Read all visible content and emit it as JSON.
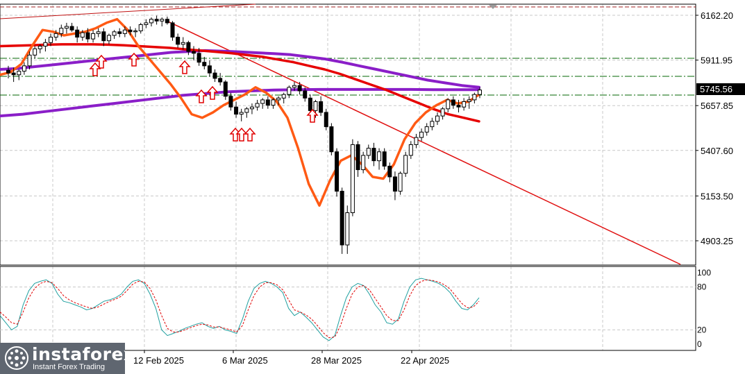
{
  "chart_data": {
    "type": "candlestick",
    "y_ticks": [
      "6162.20",
      "5911.95",
      "5657.85",
      "5407.60",
      "5153.50",
      "4903.25"
    ],
    "price_label": "5745.56",
    "x_ticks": [
      "12 Feb 2025",
      "6 Mar 2025",
      "28 Mar 2025",
      "22 Apr 2025"
    ],
    "oscillator_ticks": [
      "100",
      "80",
      "20",
      "0"
    ],
    "colors": {
      "bull_candle": "#ffffff",
      "bear_candle": "#000000",
      "fast_ma": "#ff5a14",
      "mid_ma": "#e60000",
      "slow_ma": "#8a1ec8",
      "trendline": "#e01010",
      "osc_main": "#20a0a0",
      "osc_signal": "#e00000",
      "grid": "#c8c8c8",
      "arrows": "#e00000"
    },
    "candles": [
      [
        5855,
        5880,
        5810,
        5840
      ],
      [
        5840,
        5870,
        5790,
        5830
      ],
      [
        5830,
        5860,
        5800,
        5850
      ],
      [
        5850,
        5900,
        5830,
        5880
      ],
      [
        5880,
        5960,
        5860,
        5940
      ],
      [
        5940,
        5990,
        5920,
        5975
      ],
      [
        5975,
        6000,
        5950,
        5990
      ],
      [
        5990,
        6030,
        5960,
        6010
      ],
      [
        6010,
        6060,
        5990,
        6040
      ],
      [
        6040,
        6080,
        6020,
        6060
      ],
      [
        6060,
        6110,
        6040,
        6090
      ],
      [
        6090,
        6120,
        6060,
        6100
      ],
      [
        6100,
        6120,
        6070,
        6080
      ],
      [
        6080,
        6100,
        6010,
        6040
      ],
      [
        6040,
        6080,
        6020,
        6065
      ],
      [
        6065,
        6090,
        6010,
        6030
      ],
      [
        6030,
        6080,
        6010,
        6060
      ],
      [
        6060,
        6090,
        6040,
        6070
      ],
      [
        6070,
        6090,
        5990,
        6020
      ],
      [
        6020,
        6060,
        6000,
        6050
      ],
      [
        6050,
        6080,
        6030,
        6070
      ],
      [
        6070,
        6090,
        6040,
        6060
      ],
      [
        6060,
        6100,
        6040,
        6080
      ],
      [
        6080,
        6100,
        6050,
        6070
      ],
      [
        6070,
        6090,
        6040,
        6075
      ],
      [
        6075,
        6120,
        6060,
        6110
      ],
      [
        6110,
        6140,
        6090,
        6120
      ],
      [
        6120,
        6150,
        6100,
        6140
      ],
      [
        6140,
        6160,
        6110,
        6130
      ],
      [
        6130,
        6150,
        6100,
        6140
      ],
      [
        6140,
        6155,
        6110,
        6120
      ],
      [
        6120,
        6130,
        6020,
        6040
      ],
      [
        6040,
        6060,
        5980,
        6000
      ],
      [
        6000,
        6040,
        5970,
        6010
      ],
      [
        6010,
        6020,
        5940,
        5960
      ],
      [
        5960,
        5990,
        5910,
        5950
      ],
      [
        5950,
        5980,
        5880,
        5900
      ],
      [
        5900,
        5930,
        5860,
        5880
      ],
      [
        5880,
        5910,
        5820,
        5840
      ],
      [
        5840,
        5860,
        5790,
        5810
      ],
      [
        5810,
        5840,
        5770,
        5790
      ],
      [
        5790,
        5800,
        5690,
        5710
      ],
      [
        5710,
        5730,
        5630,
        5650
      ],
      [
        5650,
        5680,
        5590,
        5610
      ],
      [
        5610,
        5640,
        5570,
        5620
      ],
      [
        5620,
        5650,
        5590,
        5640
      ],
      [
        5640,
        5670,
        5610,
        5650
      ],
      [
        5650,
        5690,
        5630,
        5670
      ],
      [
        5670,
        5700,
        5640,
        5690
      ],
      [
        5690,
        5710,
        5640,
        5660
      ],
      [
        5660,
        5700,
        5640,
        5690
      ],
      [
        5690,
        5710,
        5660,
        5700
      ],
      [
        5700,
        5730,
        5670,
        5720
      ],
      [
        5720,
        5770,
        5700,
        5760
      ],
      [
        5760,
        5790,
        5740,
        5770
      ],
      [
        5770,
        5790,
        5720,
        5740
      ],
      [
        5740,
        5760,
        5680,
        5700
      ],
      [
        5700,
        5720,
        5610,
        5630
      ],
      [
        5630,
        5690,
        5590,
        5680
      ],
      [
        5680,
        5710,
        5600,
        5620
      ],
      [
        5620,
        5640,
        5520,
        5540
      ],
      [
        5540,
        5560,
        5380,
        5400
      ],
      [
        5400,
        5420,
        5150,
        5180
      ],
      [
        5180,
        5200,
        4830,
        4880
      ],
      [
        4880,
        5100,
        4830,
        5060
      ],
      [
        5060,
        5470,
        5040,
        5440
      ],
      [
        5440,
        5460,
        5260,
        5300
      ],
      [
        5300,
        5400,
        5280,
        5380
      ],
      [
        5380,
        5440,
        5360,
        5420
      ],
      [
        5420,
        5450,
        5320,
        5350
      ],
      [
        5350,
        5420,
        5300,
        5400
      ],
      [
        5400,
        5420,
        5300,
        5320
      ],
      [
        5320,
        5340,
        5230,
        5260
      ],
      [
        5260,
        5290,
        5130,
        5180
      ],
      [
        5180,
        5290,
        5160,
        5280
      ],
      [
        5280,
        5400,
        5260,
        5380
      ],
      [
        5380,
        5460,
        5360,
        5440
      ],
      [
        5440,
        5500,
        5420,
        5480
      ],
      [
        5480,
        5530,
        5460,
        5510
      ],
      [
        5510,
        5560,
        5490,
        5540
      ],
      [
        5540,
        5590,
        5520,
        5570
      ],
      [
        5570,
        5620,
        5550,
        5600
      ],
      [
        5600,
        5650,
        5580,
        5640
      ],
      [
        5640,
        5700,
        5620,
        5690
      ],
      [
        5690,
        5710,
        5640,
        5660
      ],
      [
        5660,
        5690,
        5620,
        5650
      ],
      [
        5650,
        5700,
        5630,
        5680
      ],
      [
        5680,
        5710,
        5640,
        5690
      ],
      [
        5690,
        5730,
        5670,
        5720
      ],
      [
        5720,
        5760,
        5700,
        5745
      ]
    ],
    "fast_ma": [
      5830,
      5845,
      5890,
      5990,
      6080,
      6070,
      6050,
      6060,
      6070,
      6090,
      6120,
      6140,
      6080,
      5990,
      5920,
      5850,
      5780,
      5700,
      5610,
      5590,
      5620,
      5660,
      5690,
      5720,
      5760,
      5730,
      5680,
      5590,
      5420,
      5220,
      5100,
      5240,
      5350,
      5380,
      5330,
      5260,
      5250,
      5330,
      5470,
      5560,
      5620,
      5660,
      5690,
      5670,
      5680,
      5720
    ],
    "mid_ma": [
      5990,
      5992,
      5995,
      5998,
      6000,
      6000,
      6000,
      5998,
      5995,
      5990,
      5985,
      5980,
      5972,
      5965,
      5958,
      5950,
      5940,
      5930,
      5915,
      5900,
      5880,
      5860,
      5835,
      5805,
      5775,
      5745,
      5710,
      5675,
      5640,
      5610,
      5590,
      5570
    ],
    "slow_ma": [
      5860,
      5865,
      5875,
      5885,
      5895,
      5905,
      5915,
      5925,
      5935,
      5945,
      5955,
      5960,
      5965,
      5962,
      5958,
      5953,
      5948,
      5942,
      5930,
      5918,
      5900,
      5880,
      5860,
      5840,
      5820,
      5800,
      5785,
      5770,
      5760
    ],
    "slow_ma_b": [
      5600,
      5610,
      5625,
      5640,
      5655,
      5670,
      5685,
      5700,
      5715,
      5725,
      5735,
      5740,
      5745,
      5747,
      5748,
      5748,
      5748,
      5748,
      5748,
      5747,
      5747,
      5747
    ],
    "oscillator_main": [
      40,
      30,
      20,
      25,
      55,
      75,
      85,
      88,
      90,
      85,
      70,
      60,
      58,
      55,
      52,
      48,
      50,
      55,
      60,
      62,
      65,
      70,
      80,
      88,
      90,
      85,
      70,
      50,
      20,
      12,
      15,
      18,
      22,
      25,
      28,
      30,
      25,
      22,
      25,
      20,
      18,
      15,
      35,
      60,
      78,
      85,
      88,
      85,
      80,
      72,
      50,
      40,
      45,
      38,
      30,
      20,
      10,
      5,
      12,
      40,
      65,
      80,
      85,
      82,
      70,
      55,
      45,
      30,
      28,
      35,
      60,
      80,
      90,
      92,
      90,
      88,
      85,
      80,
      72,
      60,
      50,
      48,
      55,
      65
    ],
    "oscillator_signal": [
      45,
      38,
      30,
      28,
      45,
      65,
      78,
      85,
      88,
      86,
      78,
      68,
      62,
      58,
      55,
      52,
      50,
      52,
      56,
      60,
      63,
      67,
      75,
      84,
      88,
      87,
      78,
      62,
      40,
      22,
      17,
      17,
      20,
      23,
      26,
      28,
      27,
      24,
      24,
      22,
      20,
      17,
      26,
      48,
      68,
      80,
      86,
      86,
      83,
      76,
      62,
      48,
      45,
      41,
      35,
      26,
      16,
      9,
      10,
      26,
      50,
      70,
      80,
      82,
      76,
      64,
      52,
      40,
      33,
      33,
      48,
      68,
      82,
      88,
      90,
      89,
      87,
      83,
      77,
      67,
      57,
      51,
      52,
      60
    ]
  }
}
